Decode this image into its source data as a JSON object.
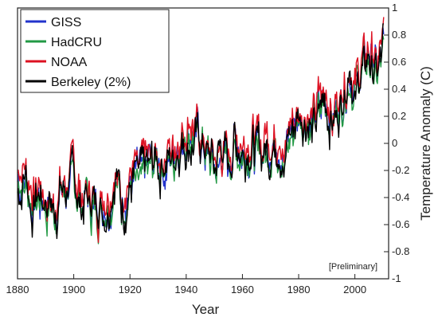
{
  "chart_data": {
    "type": "line",
    "title": "",
    "xlabel": "Year",
    "ylabel": "Temperature Anomaly (C)",
    "xlim": [
      1880,
      2012
    ],
    "ylim": [
      -1.0,
      1.0
    ],
    "x_ticks": [
      1880,
      1900,
      1920,
      1940,
      1960,
      1980,
      2000
    ],
    "y_ticks": [
      -1,
      -0.8,
      -0.6,
      -0.4,
      -0.2,
      0,
      0.2,
      0.4,
      0.6,
      0.8,
      1
    ],
    "y_tick_labels": [
      "-1",
      "-0.8",
      "-0.6",
      "-0.4",
      "-0.2",
      "0",
      "0.2",
      "0.4",
      "0.6",
      "0.8",
      "1"
    ],
    "y_axis_side": "right",
    "grid": false,
    "legend_position": "top-left",
    "annotation": "[Preliminary]",
    "anchors": {
      "x": [
        1880,
        1883,
        1885,
        1888,
        1890,
        1893,
        1895,
        1898,
        1900,
        1903,
        1905,
        1908,
        1910,
        1913,
        1915,
        1917,
        1920,
        1923,
        1925,
        1927,
        1930,
        1933,
        1935,
        1937,
        1938,
        1940,
        1943,
        1945,
        1947,
        1950,
        1953,
        1955,
        1957,
        1960,
        1963,
        1965,
        1967,
        1970,
        1973,
        1975,
        1977,
        1980,
        1983,
        1985,
        1987,
        1990,
        1992,
        1995,
        1997,
        1998,
        2000,
        2002,
        2004,
        2005,
        2007,
        2008,
        2009,
        2010
      ],
      "base": [
        -0.3,
        -0.28,
        -0.45,
        -0.4,
        -0.42,
        -0.52,
        -0.38,
        -0.32,
        -0.28,
        -0.42,
        -0.4,
        -0.48,
        -0.45,
        -0.4,
        -0.2,
        -0.45,
        -0.28,
        -0.25,
        -0.22,
        -0.18,
        -0.12,
        -0.15,
        -0.1,
        0.02,
        0.05,
        0.08,
        0.05,
        0.0,
        -0.05,
        -0.18,
        -0.05,
        -0.2,
        0.05,
        -0.05,
        0.0,
        -0.1,
        -0.05,
        0.0,
        0.05,
        -0.15,
        0.1,
        0.15,
        0.22,
        0.1,
        0.25,
        0.35,
        0.15,
        0.35,
        0.45,
        0.62,
        0.35,
        0.55,
        0.55,
        0.65,
        0.6,
        0.45,
        0.6,
        0.68
      ]
    },
    "series": [
      {
        "name": "GISS",
        "color": "#2233cc",
        "offset": 0.0,
        "seed": 11
      },
      {
        "name": "HadCRU",
        "color": "#229944",
        "offset": -0.02,
        "seed": 23
      },
      {
        "name": "NOAA",
        "color": "#dd1122",
        "offset": 0.06,
        "seed": 37
      },
      {
        "name": "Berkeley (2%)",
        "color": "#000000",
        "offset": -0.01,
        "seed": 51
      }
    ]
  }
}
